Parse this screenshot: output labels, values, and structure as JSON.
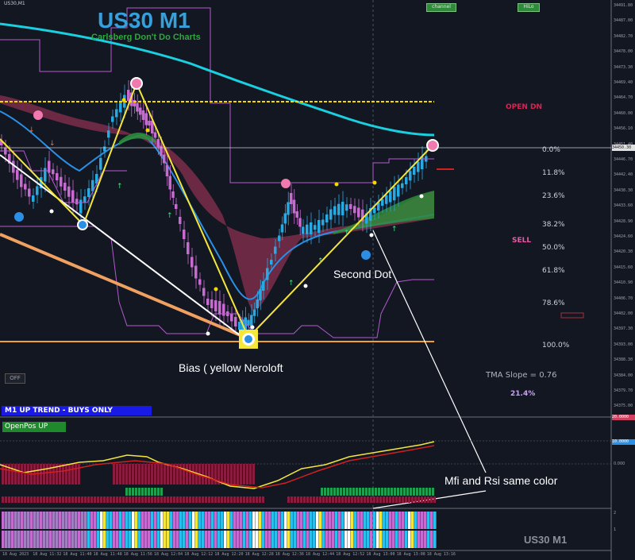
{
  "header": {
    "symbol_tag": "US30,M1",
    "title": "US30 M1",
    "subtitle": "Carlsberg Don't Do Charts",
    "buttons": [
      {
        "label": "channel"
      },
      {
        "label": "HiLo"
      }
    ]
  },
  "signals": {
    "open_dn": "OPEN  DN",
    "sell": "SELL",
    "tma_slope": "TMA Slope = 0.76",
    "percent": "21.4%"
  },
  "fib_levels": [
    "0.0%",
    "11.8%",
    "23.6%",
    "38.2%",
    "50.0%",
    "61.8%",
    "78.6%",
    "100.0%"
  ],
  "annotations": {
    "bias": "Bias ( yellow Neroloft",
    "second_dot": "Second Dot",
    "mfi_rsi": "Mfi and Rsi same color"
  },
  "status": {
    "trend": "M1  UP TREND - BUYS ONLY",
    "open_pos": "OpenPos UP",
    "off_button": "OFF",
    "watermark": "US30 M1"
  },
  "price_axis": [
    "34491.80",
    "34487.00",
    "34482.70",
    "34478.00",
    "34473.30",
    "34469.40",
    "34464.70",
    "34460.00",
    "34456.10",
    "34451.40",
    "34446.70",
    "34442.40",
    "34438.30",
    "34433.60",
    "34428.90",
    "34424.60",
    "34420.30",
    "34415.60",
    "34410.90",
    "34406.70",
    "34402.00",
    "34397.30",
    "34393.00",
    "34388.30",
    "34384.00",
    "34379.70",
    "34375.00"
  ],
  "current_price": "34450.30",
  "osc_axis": {
    "top": "20.0000",
    "mid": "10.0000",
    "zero": "0.000",
    "a": "2",
    "b": "1"
  },
  "time_axis": [
    "18 Aug 2023",
    "18 Aug 11:32",
    "18 Aug 11:40",
    "18 Aug 11:48",
    "18 Aug 11:56",
    "18 Aug 12:04",
    "18 Aug 12:12",
    "18 Aug 12:20",
    "18 Aug 12:28",
    "18 Aug 12:36",
    "18 Aug 12:44",
    "18 Aug 12:52",
    "18 Aug 13:00",
    "18 Aug 13:08",
    "18 Aug 13:16"
  ],
  "colors": {
    "bg": "#131722",
    "bull": "#29a9e1",
    "bear": "#c86bd0",
    "tma": "#1ad0e0",
    "fib": "#f5d800",
    "band": "#a04060",
    "green": "#2e8b3a"
  }
}
